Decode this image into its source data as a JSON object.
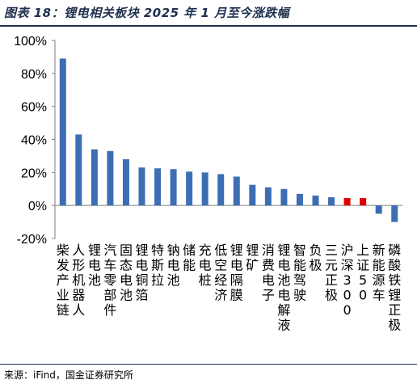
{
  "title": "图表 18：锂电相关板块 2025 年 1 月至今涨跌幅",
  "source": "来源：iFind，国金证券研究所",
  "colors": {
    "bar": "#3d6eb4",
    "highlight": "#e00000",
    "axis": "#7f7f7f",
    "title": "#1f2f4e"
  },
  "chart_data": {
    "type": "bar",
    "title": "",
    "xlabel": "",
    "ylabel": "",
    "ylim": [
      -20,
      100
    ],
    "yticks": [
      "100%",
      "80%",
      "60%",
      "40%",
      "20%",
      "0%",
      "-20%"
    ],
    "ytick_values": [
      100,
      80,
      60,
      40,
      20,
      0,
      -20
    ],
    "grid": false,
    "legend": "none",
    "categories": [
      "柴发产业链",
      "人形机器人",
      "锂电池",
      "汽车零部件",
      "固态电池",
      "锂电铜箔",
      "特斯拉",
      "钠电池",
      "储能",
      "充电桩",
      "低空经济",
      "锂电隔膜",
      "锂矿",
      "消费电子",
      "锂电池电解液",
      "智能驾驶",
      "负极",
      "三元正极",
      "沪深300",
      "上证50",
      "新能源车",
      "磷酸铁锂正极"
    ],
    "label_columns": [
      [
        "柴",
        "发",
        "产",
        "业",
        "链"
      ],
      [
        "人",
        "形",
        "机",
        "器",
        "人"
      ],
      [
        "锂",
        "电",
        "池"
      ],
      [
        "汽",
        "车",
        "零",
        "部",
        "件"
      ],
      [
        "固",
        "态",
        "电",
        "池"
      ],
      [
        "锂",
        "电",
        "铜",
        "箔"
      ],
      [
        "特",
        "斯",
        "拉"
      ],
      [
        "钠",
        "电",
        "池"
      ],
      [
        "储",
        "能"
      ],
      [
        "充",
        "电",
        "桩"
      ],
      [
        "低",
        "空",
        "经",
        "济"
      ],
      [
        "锂",
        "电",
        "隔",
        "膜"
      ],
      [
        "锂",
        "矿"
      ],
      [
        "消",
        "费",
        "电",
        "子"
      ],
      [
        "锂",
        "电",
        "池",
        "电",
        "解",
        "液"
      ],
      [
        "智",
        "能",
        "驾",
        "驶"
      ],
      [
        "负",
        "极"
      ],
      [
        "三",
        "元",
        "正",
        "极"
      ],
      [
        "沪",
        "深",
        "3",
        "0",
        "0"
      ],
      [
        "上",
        "证",
        "5",
        "0"
      ],
      [
        "新",
        "能",
        "源",
        "车"
      ],
      [
        "磷",
        "酸",
        "铁",
        "锂",
        "正",
        "极"
      ]
    ],
    "values": [
      89,
      43,
      34,
      33,
      28,
      23,
      22.5,
      22,
      20.5,
      20,
      19,
      17.5,
      12.5,
      11,
      10,
      7,
      6,
      5,
      4.5,
      4.5,
      -5,
      -10
    ],
    "highlight_indices": [
      18,
      19
    ]
  }
}
